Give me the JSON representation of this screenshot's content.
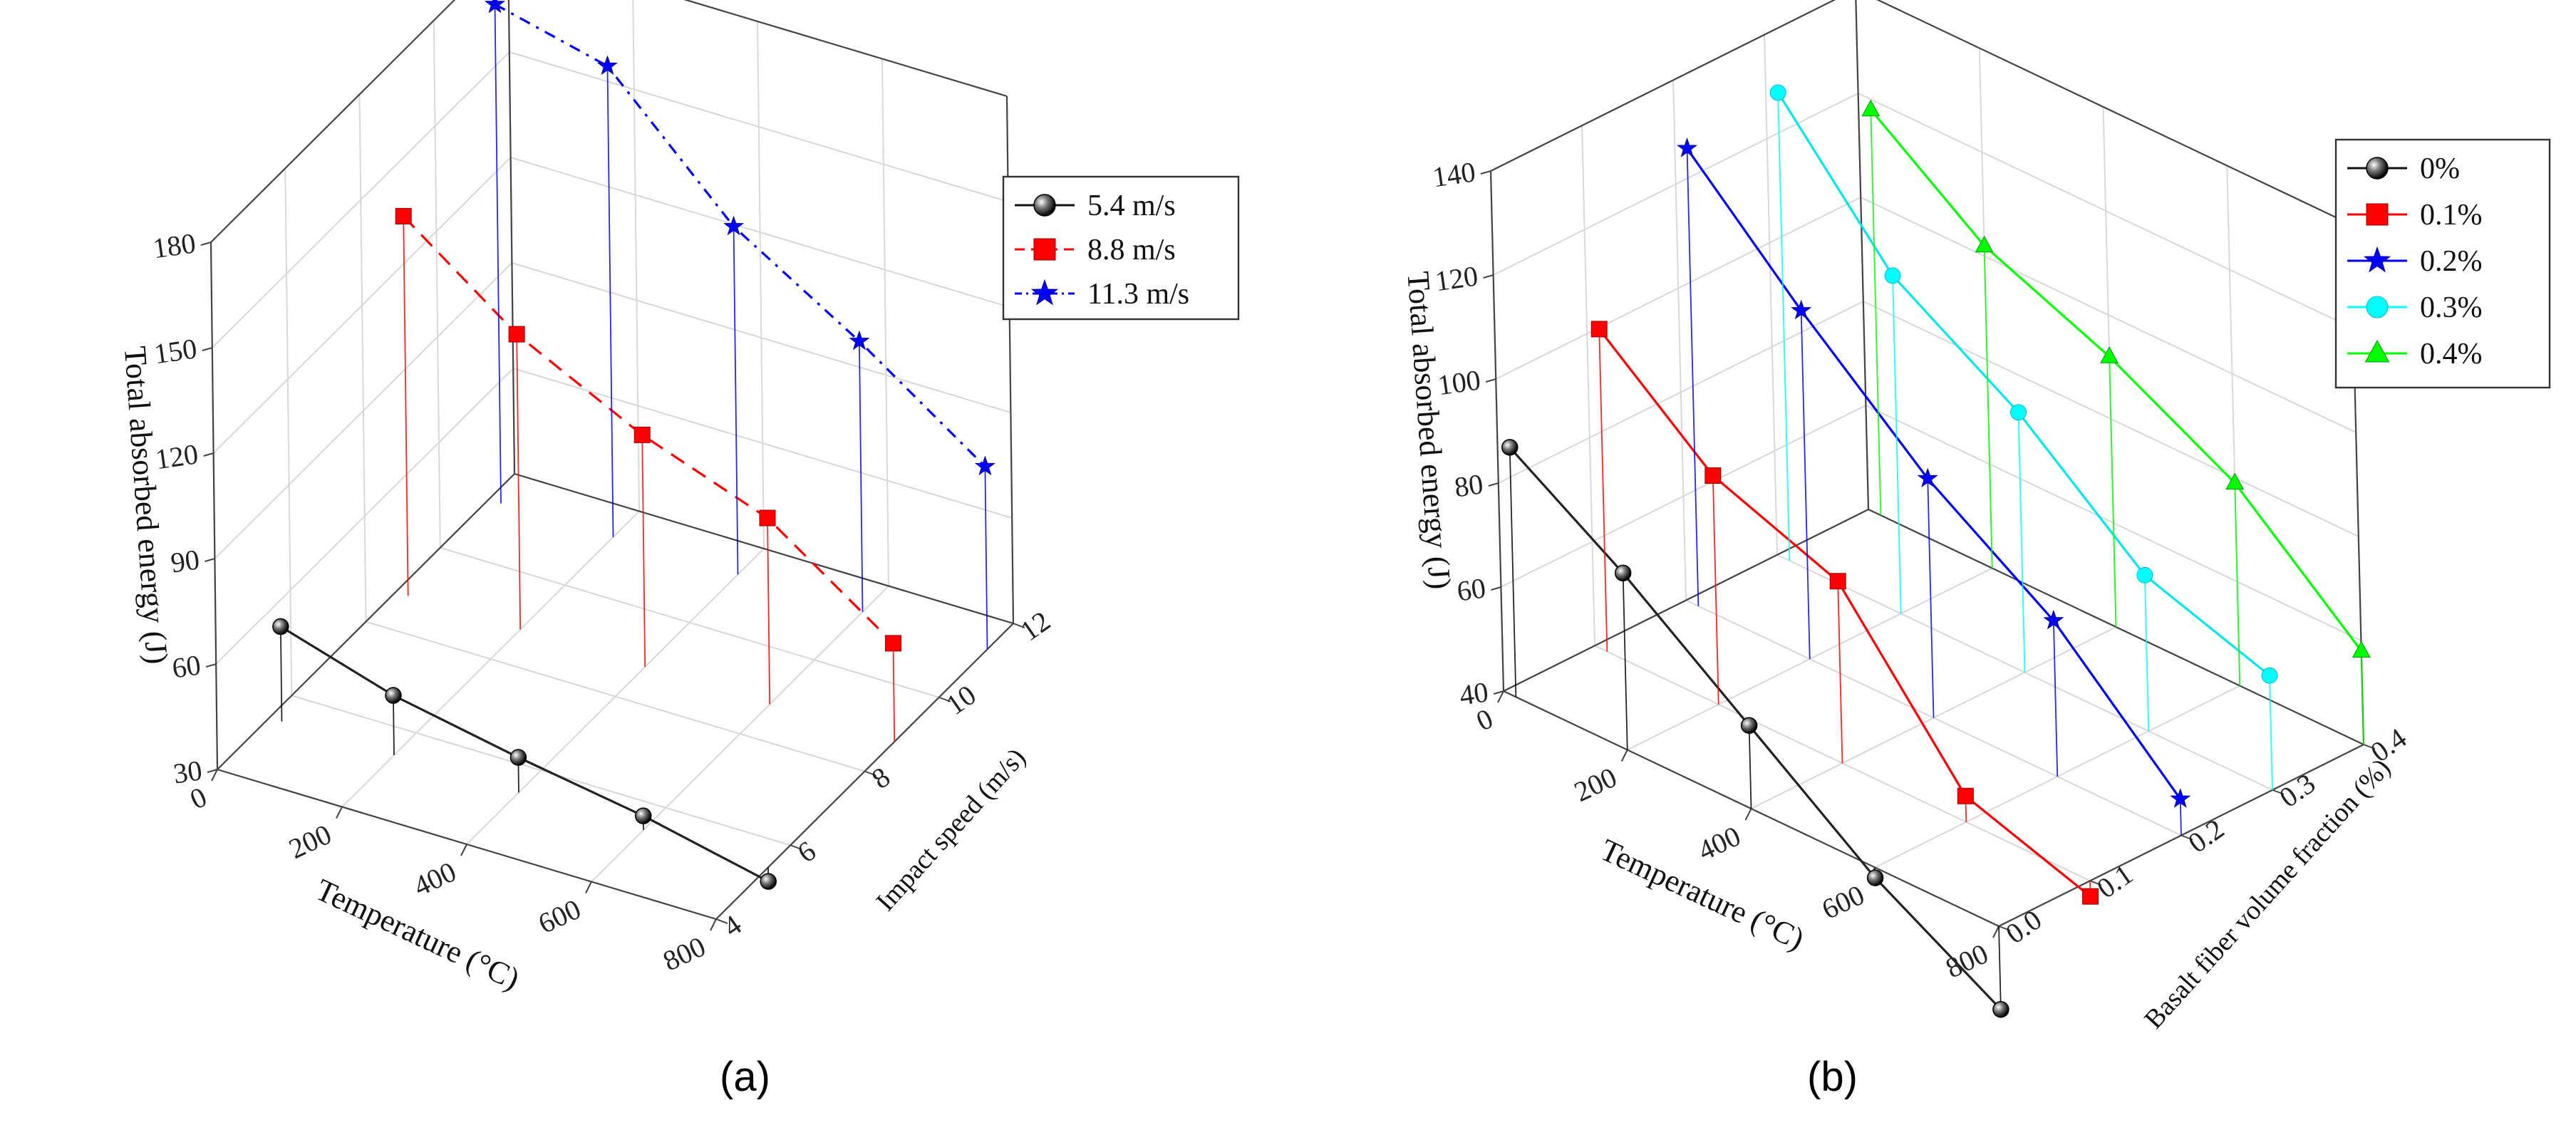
{
  "chart_data": [
    {
      "type": "scatter3d",
      "panel": "(a)",
      "zlabel": "Total absorbed energy (J)",
      "xlabel": "Temperature (°C)",
      "ylabel": "Impact speed (m/s)",
      "xlim": [
        0,
        800
      ],
      "ylim": [
        4,
        12
      ],
      "zlim": [
        30,
        180
      ],
      "xticks": [
        0,
        200,
        400,
        600,
        800
      ],
      "xticklabels": [
        "0",
        "200",
        "400",
        "600",
        "800"
      ],
      "yticks": [
        4,
        6,
        8,
        10,
        12
      ],
      "yticklabels": [
        "4",
        "6",
        "8",
        "10",
        "12"
      ],
      "zticks": [
        30,
        60,
        90,
        120,
        150,
        180
      ],
      "zticklabels": [
        "30",
        "60",
        "90",
        "120",
        "150",
        "180"
      ],
      "legend_position": "top-right",
      "x": [
        20,
        200,
        400,
        600,
        800
      ],
      "series": [
        {
          "name": "5.4 m/s",
          "speed": 5.4,
          "values": [
            57,
            47,
            40,
            34,
            26
          ],
          "color": "#000000",
          "marker": "sphere",
          "dash": "solid"
        },
        {
          "name": "8.8 m/s",
          "speed": 8.8,
          "values": [
            138,
            114,
            96,
            83,
            58
          ],
          "color": "#ff0000",
          "marker": "square",
          "dash": "dashed"
        },
        {
          "name": "11.3 m/s",
          "speed": 11.3,
          "values": [
            172,
            164,
            129,
            107,
            82
          ],
          "color": "#0000ff",
          "marker": "star",
          "dash": "dashdot"
        }
      ]
    },
    {
      "type": "scatter3d",
      "panel": "(b)",
      "zlabel": "Total absorbed energy (J)",
      "xlabel": "Temperature (°C)",
      "ylabel": "Basalt fiber volume fraction (%)",
      "xlim": [
        0,
        800
      ],
      "ylim": [
        0,
        0.4
      ],
      "zlim": [
        40,
        140
      ],
      "xticks": [
        0,
        200,
        400,
        600,
        800
      ],
      "xticklabels": [
        "0",
        "200",
        "400",
        "600",
        "800"
      ],
      "yticks": [
        0,
        0.1,
        0.2,
        0.3,
        0.4
      ],
      "yticklabels": [
        "0.0",
        "0.1",
        "0.2",
        "0.3",
        "0.4"
      ],
      "zticks": [
        40,
        60,
        80,
        100,
        120,
        140
      ],
      "zticklabels": [
        "40",
        "60",
        "80",
        "100",
        "120",
        "140"
      ],
      "legend_position": "top-right",
      "x": [
        20,
        200,
        400,
        600,
        800
      ],
      "series": [
        {
          "name": "0%",
          "fraction": 0.0,
          "values": [
            88,
            74,
            56,
            38,
            24
          ],
          "color": "#000000",
          "marker": "sphere"
        },
        {
          "name": "0.1%",
          "fraction": 0.1,
          "values": [
            102,
            84,
            75,
            45,
            37
          ],
          "color": "#ff0000",
          "marker": "square"
        },
        {
          "name": "0.2%",
          "fraction": 0.2,
          "values": [
            128,
            107,
            86,
            70,
            47
          ],
          "color": "#0000ff",
          "marker": "star"
        },
        {
          "name": "0.3%",
          "fraction": 0.3,
          "values": [
            130,
            105,
            90,
            70,
            62
          ],
          "color": "#00ffff",
          "marker": "circle"
        },
        {
          "name": "0.4%",
          "fraction": 0.4,
          "values": [
            118,
            102,
            92,
            79,
            58
          ],
          "color": "#00ff00",
          "marker": "triangle"
        }
      ]
    }
  ],
  "labels": {
    "panel_a": "(a)",
    "panel_b": "(b)"
  }
}
